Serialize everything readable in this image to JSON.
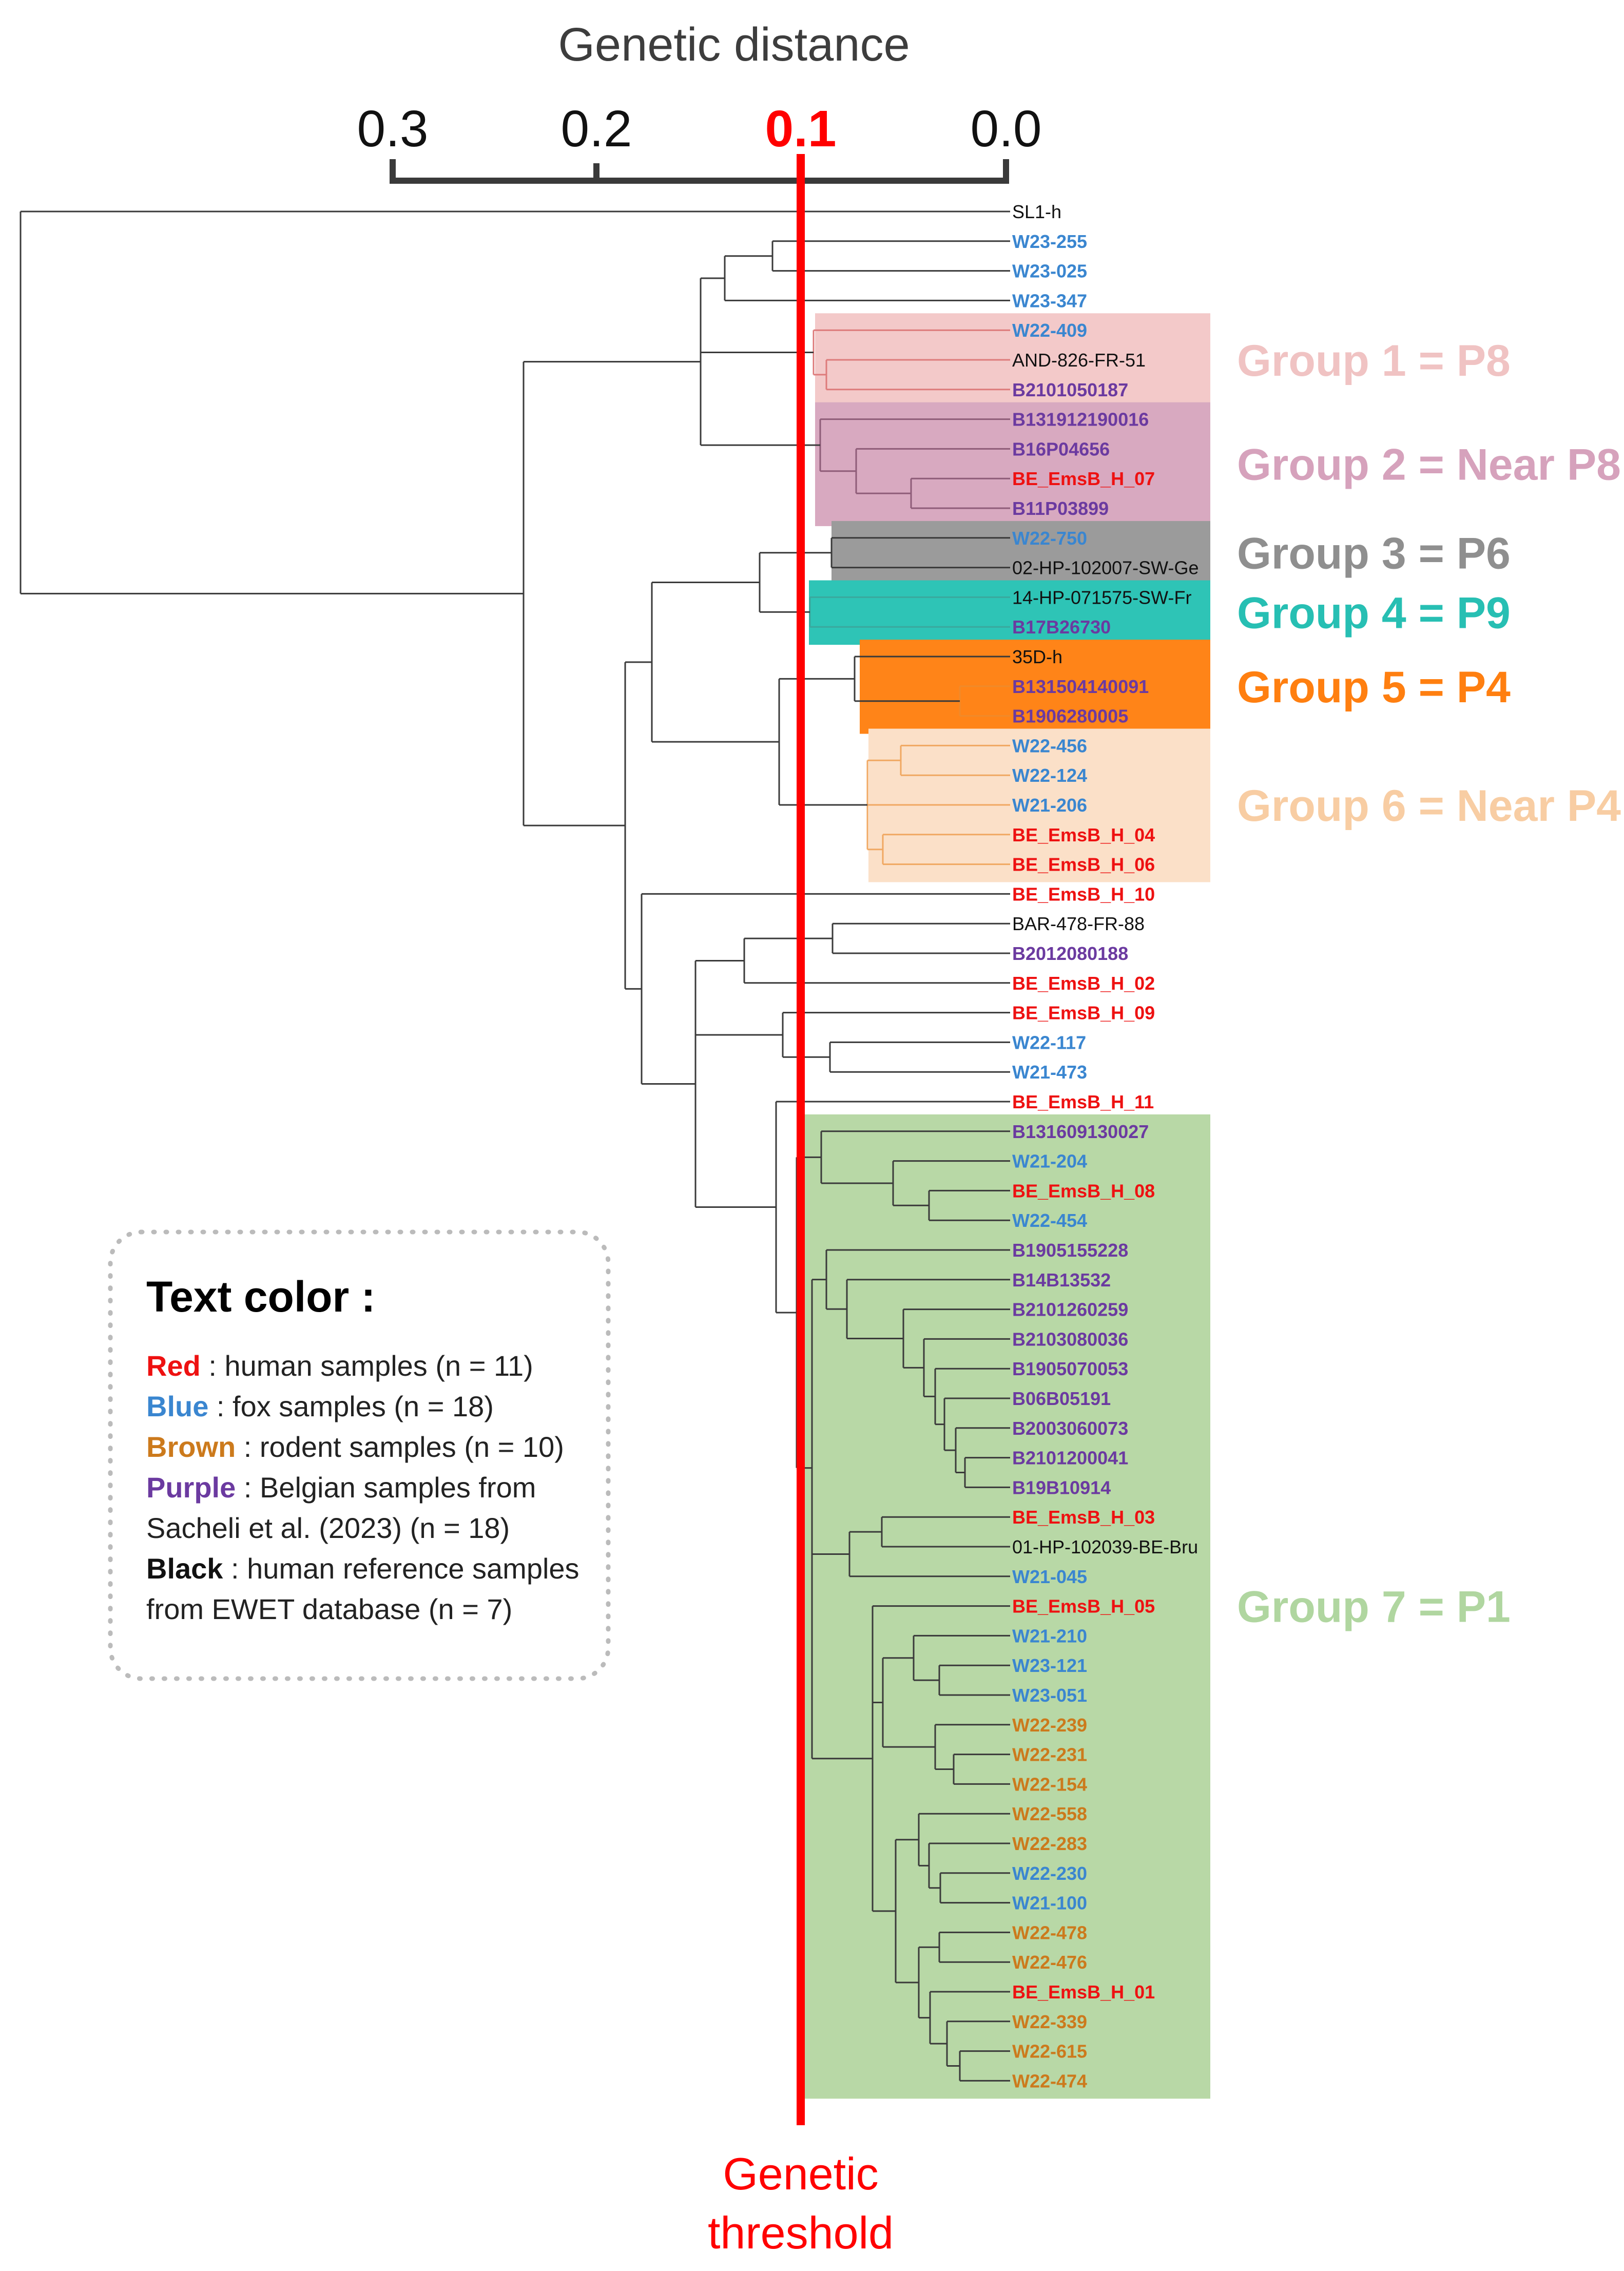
{
  "axis": {
    "title": "Genetic distance",
    "ticks": [
      "0.3",
      "0.2",
      "0.1",
      "0.0"
    ],
    "threshold_tick": "0.1"
  },
  "threshold_label": [
    "Genetic",
    "threshold"
  ],
  "colors": {
    "human": "#ee1111",
    "fox": "#3a86d0",
    "rodent": "#cc7a1c",
    "belgian": "#6b3aa0",
    "reference": "#111111",
    "threshold": "#ff0000"
  },
  "leaves": [
    {
      "name": "SL1-h",
      "cat": "reference"
    },
    {
      "name": "W23-255",
      "cat": "fox"
    },
    {
      "name": "W23-025",
      "cat": "fox"
    },
    {
      "name": "W23-347",
      "cat": "fox"
    },
    {
      "name": "W22-409",
      "cat": "fox"
    },
    {
      "name": "AND-826-FR-51",
      "cat": "reference"
    },
    {
      "name": "B2101050187",
      "cat": "belgian"
    },
    {
      "name": "B131912190016",
      "cat": "belgian"
    },
    {
      "name": "B16P04656",
      "cat": "belgian"
    },
    {
      "name": "BE_EmsB_H_07",
      "cat": "human"
    },
    {
      "name": "B11P03899",
      "cat": "belgian"
    },
    {
      "name": "W22-750",
      "cat": "fox"
    },
    {
      "name": "02-HP-102007-SW-Ge",
      "cat": "reference"
    },
    {
      "name": "14-HP-071575-SW-Fr",
      "cat": "reference"
    },
    {
      "name": "B17B26730",
      "cat": "belgian"
    },
    {
      "name": "35D-h",
      "cat": "reference"
    },
    {
      "name": "B131504140091",
      "cat": "belgian"
    },
    {
      "name": "B1906280005",
      "cat": "belgian"
    },
    {
      "name": "W22-456",
      "cat": "fox"
    },
    {
      "name": "W22-124",
      "cat": "fox"
    },
    {
      "name": "W21-206",
      "cat": "fox"
    },
    {
      "name": "BE_EmsB_H_04",
      "cat": "human"
    },
    {
      "name": "BE_EmsB_H_06",
      "cat": "human"
    },
    {
      "name": "BE_EmsB_H_10",
      "cat": "human"
    },
    {
      "name": "BAR-478-FR-88",
      "cat": "reference"
    },
    {
      "name": "B2012080188",
      "cat": "belgian"
    },
    {
      "name": "BE_EmsB_H_02",
      "cat": "human"
    },
    {
      "name": "BE_EmsB_H_09",
      "cat": "human"
    },
    {
      "name": "W22-117",
      "cat": "fox"
    },
    {
      "name": "W21-473",
      "cat": "fox"
    },
    {
      "name": "BE_EmsB_H_11",
      "cat": "human"
    },
    {
      "name": "B131609130027",
      "cat": "belgian"
    },
    {
      "name": "W21-204",
      "cat": "fox"
    },
    {
      "name": "BE_EmsB_H_08",
      "cat": "human"
    },
    {
      "name": "W22-454",
      "cat": "fox"
    },
    {
      "name": "B1905155228",
      "cat": "belgian"
    },
    {
      "name": "B14B13532",
      "cat": "belgian"
    },
    {
      "name": "B2101260259",
      "cat": "belgian"
    },
    {
      "name": "B2103080036",
      "cat": "belgian"
    },
    {
      "name": "B1905070053",
      "cat": "belgian"
    },
    {
      "name": "B06B05191",
      "cat": "belgian"
    },
    {
      "name": "B2003060073",
      "cat": "belgian"
    },
    {
      "name": "B2101200041",
      "cat": "belgian"
    },
    {
      "name": "B19B10914",
      "cat": "belgian"
    },
    {
      "name": "BE_EmsB_H_03",
      "cat": "human"
    },
    {
      "name": "01-HP-102039-BE-Bru",
      "cat": "reference"
    },
    {
      "name": "W21-045",
      "cat": "fox"
    },
    {
      "name": "BE_EmsB_H_05",
      "cat": "human"
    },
    {
      "name": "W21-210",
      "cat": "fox"
    },
    {
      "name": "W23-121",
      "cat": "fox"
    },
    {
      "name": "W23-051",
      "cat": "fox"
    },
    {
      "name": "W22-239",
      "cat": "rodent"
    },
    {
      "name": "W22-231",
      "cat": "rodent"
    },
    {
      "name": "W22-154",
      "cat": "rodent"
    },
    {
      "name": "W22-558",
      "cat": "rodent"
    },
    {
      "name": "W22-283",
      "cat": "rodent"
    },
    {
      "name": "W22-230",
      "cat": "fox"
    },
    {
      "name": "W21-100",
      "cat": "fox"
    },
    {
      "name": "W22-478",
      "cat": "rodent"
    },
    {
      "name": "W22-476",
      "cat": "rodent"
    },
    {
      "name": "BE_EmsB_H_01",
      "cat": "human"
    },
    {
      "name": "W22-339",
      "cat": "rodent"
    },
    {
      "name": "W22-615",
      "cat": "rodent"
    },
    {
      "name": "W22-474",
      "cat": "rodent"
    }
  ],
  "groups": [
    {
      "label": "Group 1 = P8",
      "first_leaf": 4,
      "last_leaf": 6,
      "color": "#f3c9c9",
      "text_color": "#f0c3c3"
    },
    {
      "label": "Group 2 = Near P8",
      "first_leaf": 7,
      "last_leaf": 10,
      "color": "#d8a9c0",
      "text_color": "#d6a2bc"
    },
    {
      "label": "Group 3 = P6",
      "first_leaf": 11,
      "last_leaf": 12,
      "color": "#9b9b9b",
      "text_color": "#8f8f8f"
    },
    {
      "label": "Group 4 = P9",
      "first_leaf": 13,
      "last_leaf": 14,
      "color": "#2ec4b6",
      "text_color": "#27bfb3"
    },
    {
      "label": "Group 5 = P4",
      "first_leaf": 15,
      "last_leaf": 17,
      "color": "#ff8418",
      "text_color": "#ff7f10"
    },
    {
      "label": "Group 6 = Near P4",
      "first_leaf": 18,
      "last_leaf": 22,
      "color": "#fbe0c8",
      "text_color": "#f8cda3"
    },
    {
      "label": "Group 7 = P1",
      "first_leaf": 31,
      "last_leaf": 63,
      "color": "#b8d8a6",
      "text_color": "#b0d6a0"
    }
  ],
  "legend": {
    "title": "Text color :",
    "items": [
      {
        "key": "Red",
        "text": " : human samples (n = 11)",
        "color": "#ee1111"
      },
      {
        "key": "Blue",
        "text": " : fox samples (n = 18)",
        "color": "#3a86d0"
      },
      {
        "key": "Brown",
        "text": " : rodent samples (n = 10)",
        "color": "#cc7a1c"
      },
      {
        "key": "Purple",
        "text": " : Belgian samples from",
        "color": "#6b3aa0"
      },
      {
        "key": "",
        "text": "Sacheli et al. (2023) (n = 18)",
        "color": "#222222"
      },
      {
        "key": "Black",
        "text": " : human reference samples",
        "color": "#111111"
      },
      {
        "key": "",
        "text": "from EWET database (n = 7)",
        "color": "#222222"
      }
    ]
  }
}
